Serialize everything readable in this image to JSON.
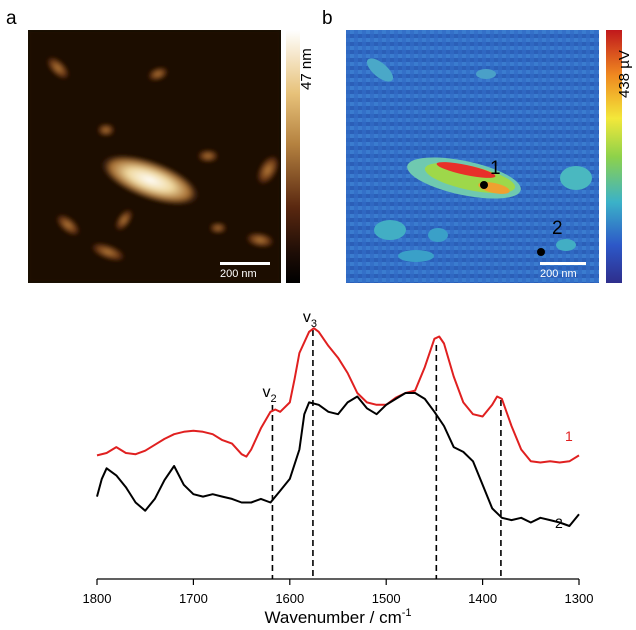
{
  "panel_a": {
    "letter": "a",
    "scale_label": "200 nm",
    "colorbar_label": "47 nm",
    "colors": [
      "#ffffff",
      "#e7c27a",
      "#b58240",
      "#5a2810",
      "#1e0d06",
      "#000000"
    ]
  },
  "panel_b": {
    "letter": "b",
    "scale_label": "200 nm",
    "colorbar_label": "438 µV",
    "point_labels": [
      "1",
      "2"
    ],
    "colors": [
      "#c0181c",
      "#f08a20",
      "#f3e83a",
      "#8ed24a",
      "#3bb2c8",
      "#2d58c8",
      "#2e2e8c"
    ]
  },
  "chart_data": {
    "type": "line",
    "xlabel": "Wavenumber / cm",
    "xlabel_superscript": "-1",
    "x_ticks": [
      "1800",
      "1700",
      "1600",
      "1500",
      "1400",
      "1300"
    ],
    "xlim": [
      1800,
      1300
    ],
    "grid": false,
    "series": [
      {
        "name": "1",
        "color": "#e02020",
        "x": [
          1800,
          1790,
          1780,
          1770,
          1760,
          1750,
          1740,
          1730,
          1720,
          1710,
          1700,
          1690,
          1680,
          1670,
          1660,
          1650,
          1645,
          1640,
          1630,
          1620,
          1615,
          1610,
          1600,
          1595,
          1590,
          1580,
          1575,
          1570,
          1560,
          1550,
          1540,
          1530,
          1520,
          1510,
          1500,
          1490,
          1480,
          1470,
          1460,
          1450,
          1445,
          1440,
          1430,
          1420,
          1410,
          1400,
          1390,
          1385,
          1380,
          1370,
          1360,
          1350,
          1340,
          1330,
          1320,
          1310,
          1300
        ],
        "y": [
          0.35,
          0.37,
          0.42,
          0.37,
          0.36,
          0.39,
          0.44,
          0.49,
          0.53,
          0.55,
          0.56,
          0.55,
          0.53,
          0.48,
          0.45,
          0.36,
          0.34,
          0.4,
          0.58,
          0.72,
          0.74,
          0.72,
          0.8,
          1.0,
          1.22,
          1.4,
          1.43,
          1.4,
          1.28,
          1.18,
          1.05,
          0.88,
          0.8,
          0.78,
          0.78,
          0.84,
          0.88,
          0.9,
          1.1,
          1.34,
          1.36,
          1.3,
          1.02,
          0.8,
          0.7,
          0.68,
          0.78,
          0.85,
          0.83,
          0.6,
          0.4,
          0.3,
          0.29,
          0.3,
          0.29,
          0.3,
          0.35
        ]
      },
      {
        "name": "2",
        "color": "#000000",
        "x": [
          1800,
          1795,
          1790,
          1780,
          1770,
          1760,
          1750,
          1740,
          1730,
          1720,
          1710,
          1700,
          1690,
          1680,
          1670,
          1660,
          1650,
          1640,
          1630,
          1620,
          1610,
          1600,
          1590,
          1585,
          1580,
          1570,
          1560,
          1550,
          1540,
          1530,
          1520,
          1510,
          1500,
          1490,
          1480,
          1470,
          1460,
          1450,
          1440,
          1430,
          1420,
          1410,
          1400,
          1390,
          1380,
          1370,
          1360,
          1350,
          1340,
          1330,
          1320,
          1310,
          1300
        ],
        "y": [
          0.0,
          0.15,
          0.24,
          0.18,
          0.08,
          -0.05,
          -0.12,
          -0.02,
          0.14,
          0.26,
          0.1,
          0.02,
          0.0,
          0.02,
          0.0,
          -0.02,
          -0.05,
          -0.05,
          -0.02,
          -0.05,
          0.05,
          0.15,
          0.4,
          0.7,
          0.8,
          0.78,
          0.72,
          0.7,
          0.8,
          0.85,
          0.75,
          0.7,
          0.78,
          0.83,
          0.88,
          0.88,
          0.83,
          0.72,
          0.6,
          0.42,
          0.38,
          0.3,
          0.1,
          -0.1,
          -0.18,
          -0.2,
          -0.18,
          -0.22,
          -0.18,
          -0.2,
          -0.22,
          -0.25,
          -0.15
        ]
      }
    ],
    "ylim": [
      -0.7,
      1.5
    ],
    "annotations": [
      {
        "x": 1618,
        "label": "v",
        "sub": "2"
      },
      {
        "x": 1576,
        "label": "v",
        "sub": "3"
      },
      {
        "x": 1448,
        "label": "",
        "sub": ""
      },
      {
        "x": 1381,
        "label": "",
        "sub": ""
      }
    ],
    "series_labels": [
      {
        "text": "1",
        "color": "#e02020"
      },
      {
        "text": "2",
        "color": "#000000"
      }
    ]
  }
}
